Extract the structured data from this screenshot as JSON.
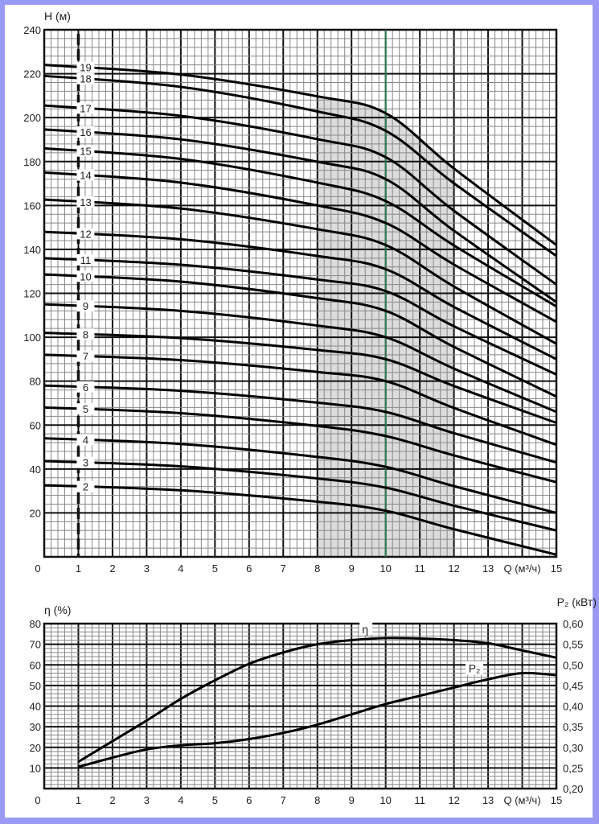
{
  "chart_data": [
    {
      "type": "line",
      "ylabel": "H (м)",
      "xlabel": "Q (м³/ч)",
      "xlim": [
        0,
        15
      ],
      "ylim": [
        0,
        240
      ],
      "x_ticks": [
        "0",
        "1",
        "2",
        "3",
        "4",
        "5",
        "6",
        "7",
        "8",
        "9",
        "10",
        "11",
        "12",
        "13",
        "15"
      ],
      "y_ticks": [
        "20",
        "40",
        "60",
        "80",
        "100",
        "120",
        "140",
        "160",
        "180",
        "200",
        "220",
        "240"
      ],
      "grid": true,
      "highlight_band_q": [
        8,
        12
      ],
      "highlight_band_color": "#dcdcdc",
      "marker_line_q": 10,
      "marker_line_color": "#2e7d4f",
      "x": [
        0,
        4,
        8,
        10,
        12,
        15
      ],
      "series": [
        {
          "name": "2",
          "values": [
            32.6,
            30.3,
            25.1,
            21,
            12.6,
            1
          ]
        },
        {
          "name": "3",
          "values": [
            43.6,
            41.2,
            35.7,
            31.5,
            23.3,
            12
          ]
        },
        {
          "name": "4",
          "values": [
            54,
            51.4,
            45.5,
            41,
            32.2,
            20
          ]
        },
        {
          "name": "5",
          "values": [
            68,
            65.4,
            59.6,
            55,
            46.2,
            34
          ]
        },
        {
          "name": "6",
          "values": [
            78,
            75.6,
            70.2,
            66,
            56.3,
            43
          ]
        },
        {
          "name": "7",
          "values": [
            92,
            89.6,
            84.2,
            80,
            67.8,
            51
          ]
        },
        {
          "name": "8",
          "values": [
            102,
            99.6,
            94.2,
            90,
            77.8,
            61
          ]
        },
        {
          "name": "9",
          "values": [
            115,
            112,
            105.3,
            100,
            85.7,
            66
          ]
        },
        {
          "name": "10",
          "values": [
            128.6,
            125.3,
            117.8,
            112,
            95.6,
            73
          ]
        },
        {
          "name": "11",
          "values": [
            136,
            133,
            126.3,
            121,
            105,
            83
          ]
        },
        {
          "name": "12",
          "values": [
            148,
            144.6,
            137,
            131,
            113.8,
            90
          ]
        },
        {
          "name": "13",
          "values": [
            162.7,
            158.6,
            149.2,
            142,
            123.1,
            97
          ]
        },
        {
          "name": "14",
          "values": [
            175,
            170.4,
            160,
            152,
            133.1,
            107
          ]
        },
        {
          "name": "15",
          "values": [
            186,
            181.2,
            170.4,
            162,
            141.8,
            114
          ]
        },
        {
          "name": "16",
          "values": [
            194.6,
            190.1,
            179.9,
            172,
            148.5,
            116
          ]
        },
        {
          "name": "17",
          "values": [
            205.5,
            200.8,
            190.2,
            182,
            157.6,
            124
          ]
        },
        {
          "name": "18",
          "values": [
            219,
            214,
            202.8,
            194,
            170.1,
            137
          ]
        },
        {
          "name": "19",
          "values": [
            224,
            219.6,
            209.7,
            202,
            176.8,
            142
          ]
        }
      ]
    },
    {
      "type": "line",
      "ylabel": "η (%)",
      "y2label": "P₂ (кВт)",
      "xlabel": "Q (м³/ч)",
      "xlim": [
        0,
        15
      ],
      "ylim": [
        0,
        80
      ],
      "y2lim": [
        0.2,
        0.6
      ],
      "x_ticks": [
        "0",
        "1",
        "2",
        "3",
        "4",
        "5",
        "6",
        "7",
        "8",
        "9",
        "10",
        "11",
        "12",
        "13",
        "15"
      ],
      "y_ticks": [
        "10",
        "20",
        "30",
        "40",
        "50",
        "60",
        "70",
        "80"
      ],
      "y2_ticks": [
        "0,20",
        "0,25",
        "0,30",
        "0,35",
        "0,40",
        "0,45",
        "0,50",
        "0,55",
        "0,60"
      ],
      "grid": true,
      "x": [
        1,
        2,
        3,
        4,
        5,
        6,
        7,
        8,
        9,
        10,
        11,
        12,
        13,
        14,
        15
      ],
      "series": [
        {
          "name": "η",
          "axis": "left",
          "values": [
            13,
            23,
            33,
            43.5,
            52.5,
            60.5,
            66,
            70,
            72,
            73,
            72.8,
            72,
            70.5,
            67,
            63.5
          ]
        },
        {
          "name": "P₂",
          "axis": "right",
          "values": [
            0.2525,
            0.275,
            0.295,
            0.305,
            0.31,
            0.32,
            0.335,
            0.355,
            0.38,
            0.405,
            0.425,
            0.445,
            0.465,
            0.48,
            0.475
          ]
        }
      ]
    }
  ]
}
